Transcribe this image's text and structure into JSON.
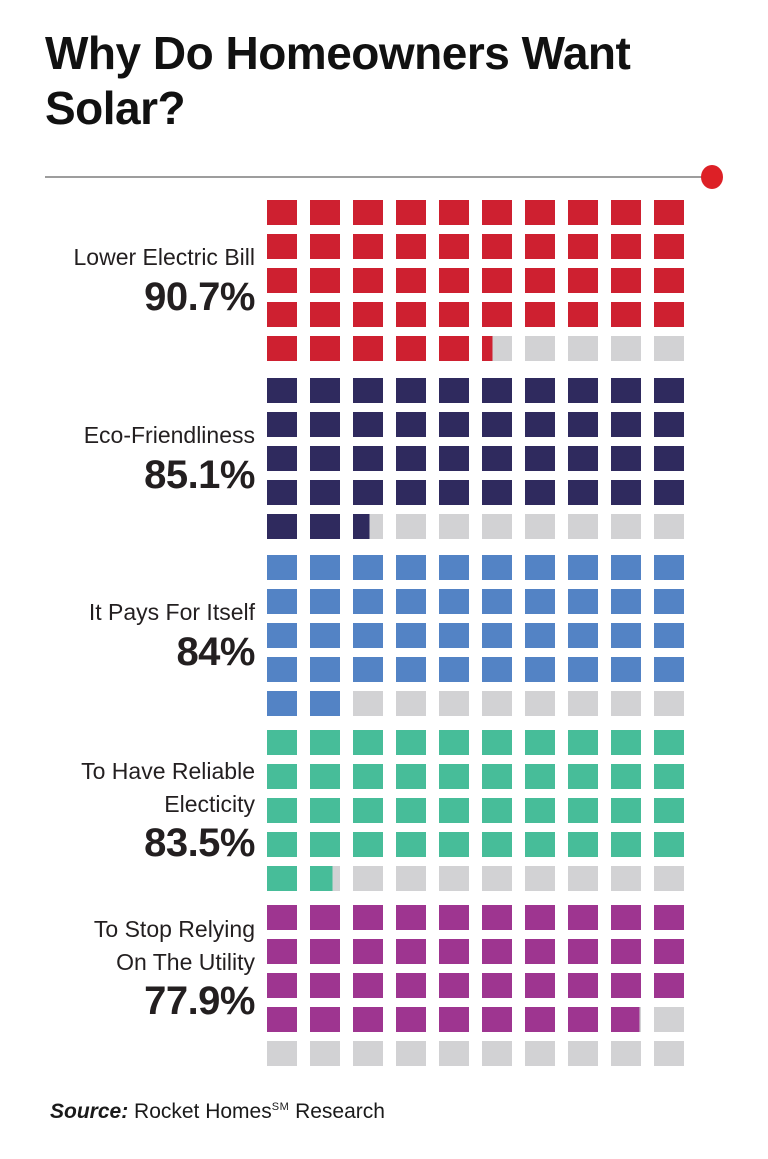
{
  "title": "Why Do Homeowners Want Solar?",
  "source": {
    "prefix": "Source:",
    "body": " Rocket Homes",
    "superscript": "SM",
    "tail": " Research"
  },
  "colors": {
    "empty_cell": "#D2D2D4",
    "divider_line": "#9d9d9d",
    "accent_dot": "#DD2026",
    "text": "#231F20"
  },
  "chart_data": {
    "type": "waffle",
    "title": "Why Do Homeowners Want Solar?",
    "columns": 10,
    "rows": 5,
    "percent_per_cell": 2,
    "categories": [
      "Lower Electric Bill",
      "Eco-Friendliness",
      "It Pays For Itself",
      "To Have Reliable Electicity",
      "To Stop Relying On The Utility"
    ],
    "label_lines": [
      [
        "Lower Electric Bill"
      ],
      [
        "Eco-Friendliness"
      ],
      [
        "It Pays For Itself"
      ],
      [
        "To Have Reliable",
        "Electicity"
      ],
      [
        "To Stop Relying",
        "On The Utility"
      ]
    ],
    "values": [
      90.7,
      85.1,
      84,
      83.5,
      77.9
    ],
    "value_labels": [
      "90.7%",
      "85.1%",
      "84%",
      "83.5%",
      "77.9%"
    ],
    "series_colors": [
      "#CE2030",
      "#2F2A5E",
      "#5383C5",
      "#47BD99",
      "#9E3590"
    ],
    "empty_color": "#D2D2D4",
    "legend_position": "none",
    "grid": false
  }
}
